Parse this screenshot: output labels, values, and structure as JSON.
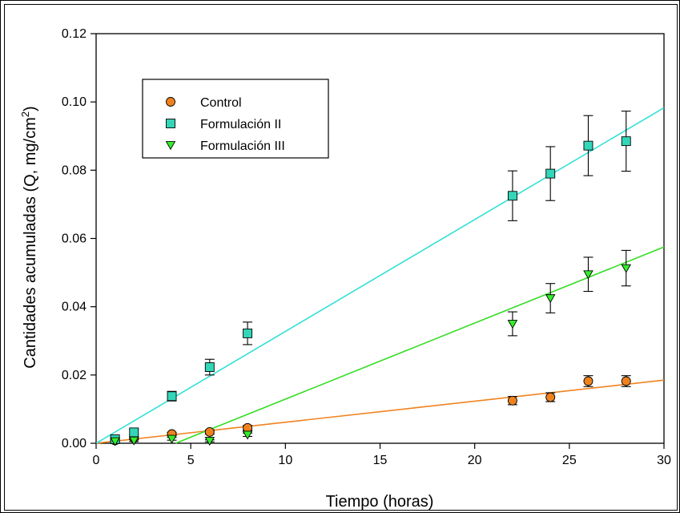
{
  "chart_data": {
    "type": "scatter",
    "xlabel": "Tiempo (horas)",
    "ylabel_main": "Cantidades acumuladas (Q, mg/cm",
    "ylabel_sup": "2",
    "ylabel_close": ")",
    "xlim": [
      0,
      30
    ],
    "ylim": [
      0,
      0.12
    ],
    "xticks": [
      0,
      5,
      10,
      15,
      20,
      25,
      30
    ],
    "xtick_labels": [
      "0",
      "5",
      "10",
      "15",
      "20",
      "25",
      "30"
    ],
    "yticks": [
      0,
      0.02,
      0.04,
      0.06,
      0.08,
      0.1,
      0.12
    ],
    "ytick_labels": [
      "0.00",
      "0.02",
      "0.04",
      "0.06",
      "0.08",
      "0.10",
      "0.12"
    ],
    "grid": false,
    "legend_position": "top-left",
    "series": [
      {
        "name": "Control",
        "marker": "circle",
        "color": "#f0821e",
        "line_color": "#f0821e",
        "x": [
          1,
          2,
          4,
          6,
          8,
          22,
          24,
          26,
          28
        ],
        "y": [
          0.0008,
          0.0015,
          0.0027,
          0.0033,
          0.0045,
          0.0125,
          0.0135,
          0.0182,
          0.0182
        ],
        "err": [
          0.0003,
          0.0004,
          0.0005,
          0.0006,
          0.0007,
          0.0012,
          0.0013,
          0.0016,
          0.0016
        ],
        "fit": [
          [
            0,
            0
          ],
          [
            30,
            0.0185
          ]
        ]
      },
      {
        "name": "Formulación II",
        "marker": "square",
        "color": "#33d6b8",
        "line_color": "#33e0d6",
        "x": [
          1,
          2,
          4,
          6,
          8,
          22,
          24,
          26,
          28
        ],
        "y": [
          0.0012,
          0.0032,
          0.0138,
          0.0223,
          0.0322,
          0.0725,
          0.079,
          0.0872,
          0.0885
        ],
        "err": [
          0.0005,
          0.0008,
          0.0014,
          0.0023,
          0.0033,
          0.0073,
          0.0079,
          0.0088,
          0.0088
        ],
        "fit": [
          [
            0,
            0
          ],
          [
            30,
            0.0983
          ]
        ]
      },
      {
        "name": "Formulación III",
        "marker": "triangle-down",
        "color": "#33ee2a",
        "line_color": "#33dd22",
        "x": [
          1,
          2,
          4,
          6,
          8,
          22,
          24,
          26,
          28
        ],
        "y": [
          0.0006,
          0.0008,
          0.0013,
          0.0007,
          0.0025,
          0.035,
          0.0425,
          0.0495,
          0.0513
        ],
        "err": [
          0.0002,
          0.0003,
          0.0004,
          0.0003,
          0.0005,
          0.0035,
          0.0043,
          0.005,
          0.0052
        ],
        "fit": [
          [
            4.2,
            0
          ],
          [
            30,
            0.0575
          ]
        ]
      }
    ]
  }
}
